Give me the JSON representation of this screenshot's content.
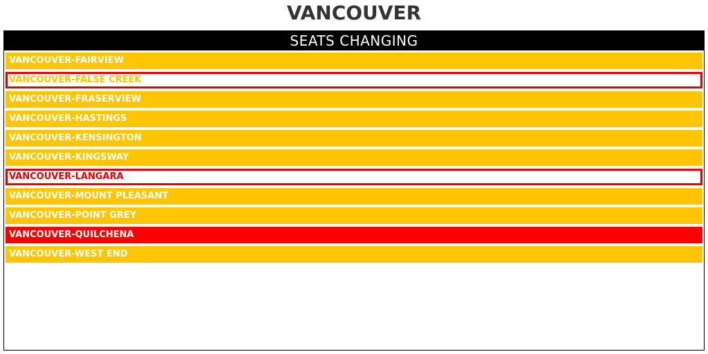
{
  "title": "VANCOUVER",
  "panel": {
    "header": "SEATS CHANGING",
    "ridings": [
      {
        "name": "VANCOUVER-FAIRVIEW",
        "style": "hold"
      },
      {
        "name": "VANCOUVER-FALSE CREEK",
        "style": "outline-gold"
      },
      {
        "name": "VANCOUVER-FRASERVIEW",
        "style": "hold"
      },
      {
        "name": "VANCOUVER-HASTINGS",
        "style": "hold"
      },
      {
        "name": "VANCOUVER-KENSINGTON",
        "style": "hold"
      },
      {
        "name": "VANCOUVER-KINGSWAY",
        "style": "hold"
      },
      {
        "name": "VANCOUVER-LANGARA",
        "style": "outline-red"
      },
      {
        "name": "VANCOUVER-MOUNT PLEASANT",
        "style": "hold"
      },
      {
        "name": "VANCOUVER-POINT GREY",
        "style": "hold"
      },
      {
        "name": "VANCOUVER-QUILCHENA",
        "style": "red"
      },
      {
        "name": "VANCOUVER-WEST END",
        "style": "hold"
      }
    ]
  },
  "colors": {
    "gold": "#ffc600",
    "red": "#ff0000",
    "outline_red": "#e00000",
    "header_bg": "#000000",
    "title_text": "#333333"
  }
}
